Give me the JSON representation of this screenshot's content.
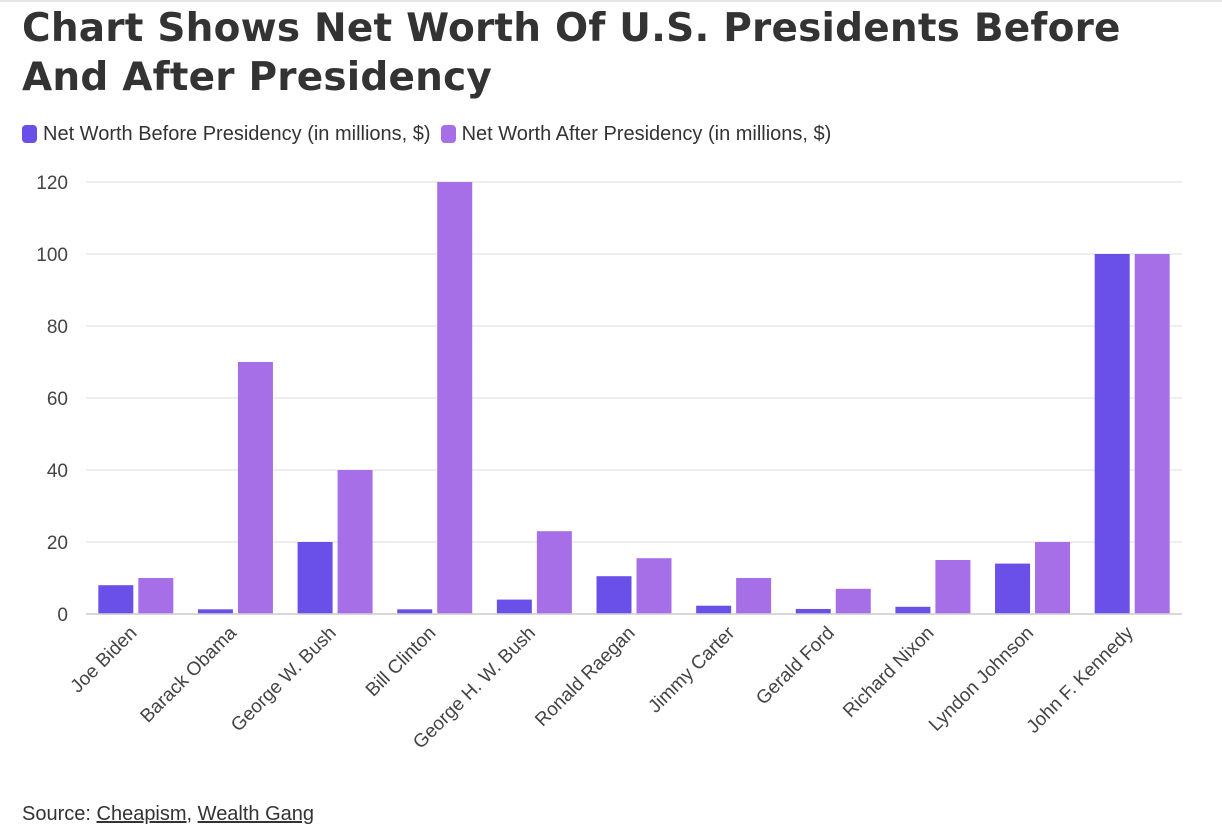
{
  "title": "Chart Shows Net Worth Of U.S. Presidents Before And After Presidency",
  "legend": {
    "before_label": "Net Worth Before Presidency (in millions, $)",
    "after_label": "Net Worth After Presidency (in millions, $)"
  },
  "source": {
    "prefix": "Source:",
    "link1": "Cheapism",
    "separator": ",",
    "link2": "Wealth Gang"
  },
  "colors": {
    "before": "#6a50e8",
    "after": "#a66fe8",
    "grid": "#e8e8e8",
    "text": "#333333"
  },
  "chart_data": {
    "type": "bar",
    "categories": [
      "Joe Biden",
      "Barack Obama",
      "George W. Bush",
      "Bill Clinton",
      "George H. W. Bush",
      "Ronald Raegan",
      "Jimmy Carter",
      "Gerald Ford",
      "Richard Nixon",
      "Lyndon Johnson",
      "John F. Kennedy"
    ],
    "series": [
      {
        "name": "Net Worth Before Presidency (in millions, $)",
        "values": [
          8,
          1.3,
          20,
          1.3,
          4,
          10.5,
          2.3,
          1.4,
          2,
          14,
          100
        ]
      },
      {
        "name": "Net Worth After Presidency (in millions, $)",
        "values": [
          10,
          70,
          40,
          120,
          23,
          15.5,
          10,
          7,
          15,
          20,
          100
        ]
      }
    ],
    "yticks": [
      0,
      20,
      40,
      60,
      80,
      100,
      120
    ],
    "ylim": [
      0,
      120
    ],
    "grid": true,
    "legend_position": "top-left"
  }
}
